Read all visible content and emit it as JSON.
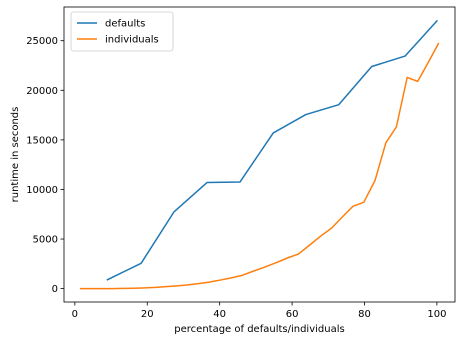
{
  "chart_data": {
    "type": "line",
    "xlabel": "percentage of defaults/individuals",
    "ylabel": "runtime in seconds",
    "xlim": [
      -3,
      105
    ],
    "ylim": [
      -1350,
      28400
    ],
    "xticks": [
      0,
      20,
      40,
      60,
      80,
      100
    ],
    "xtick_labels": [
      "0",
      "20",
      "40",
      "60",
      "80",
      "100"
    ],
    "yticks": [
      0,
      5000,
      10000,
      15000,
      20000,
      25000
    ],
    "ytick_labels": [
      "0",
      "5000",
      "10000",
      "15000",
      "20000",
      "25000"
    ],
    "grid": false,
    "legend_position": "top-left",
    "series": [
      {
        "name": "defaults",
        "color": "#1f77b4",
        "x": [
          9,
          18.3,
          27.4,
          36.5,
          45.6,
          54.8,
          63.8,
          72.9,
          82,
          91.2,
          100
        ],
        "y": [
          900,
          2550,
          7750,
          10700,
          10750,
          15700,
          17550,
          18550,
          22400,
          23450,
          27000
        ]
      },
      {
        "name": "individuals",
        "color": "#ff7f0e",
        "x": [
          1.6,
          4.3,
          7.6,
          10.5,
          13.4,
          16.4,
          19.5,
          22.3,
          25.2,
          28.2,
          31.2,
          34.1,
          37.1,
          40,
          43.4,
          46.3,
          49.2,
          52.3,
          55.5,
          58.8,
          61.8,
          64.7,
          67.9,
          70.9,
          73.8,
          76.8,
          79.8,
          82.9,
          85.9,
          88.8,
          91.8,
          94.7,
          97.9,
          100.4
        ],
        "y": [
          0,
          0,
          0,
          0,
          20,
          40,
          80,
          120,
          200,
          280,
          380,
          500,
          650,
          850,
          1100,
          1350,
          1750,
          2150,
          2600,
          3100,
          3500,
          4350,
          5300,
          6100,
          7200,
          8300,
          8700,
          10900,
          14700,
          16300,
          21300,
          20900,
          23000,
          24700
        ]
      }
    ]
  }
}
